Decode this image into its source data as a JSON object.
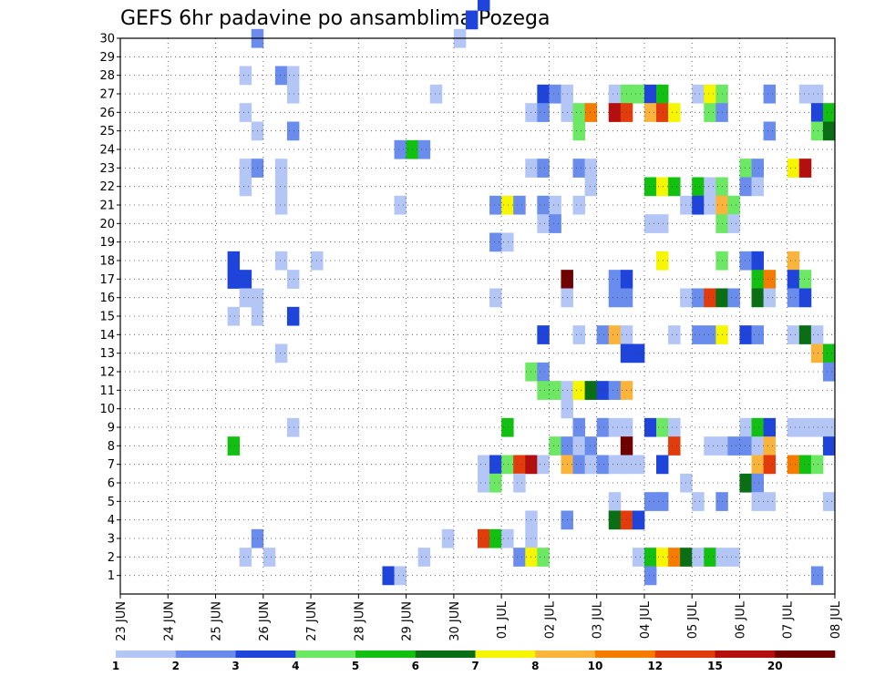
{
  "chart_data": {
    "type": "heatmap",
    "title": "GEFS 6hr padavine po ansamblima Pozega",
    "xlabel": "",
    "ylabel": "",
    "x_ticks": [
      "23 JUN",
      "24 JUN",
      "25 JUN",
      "26 JUN",
      "27 JUN",
      "28 JUN",
      "29 JUN",
      "30 JUN",
      "01 JUL",
      "02 JUL",
      "03 JUL",
      "04 JUL",
      "05 JUL",
      "06 JUL",
      "07 JUL",
      "08 JUL"
    ],
    "x_range": [
      0,
      60
    ],
    "y_range": [
      0,
      30
    ],
    "y_ticks": [
      1,
      2,
      3,
      4,
      5,
      6,
      7,
      8,
      9,
      10,
      11,
      12,
      13,
      14,
      15,
      16,
      17,
      18,
      19,
      20,
      21,
      22,
      23,
      24,
      25,
      26,
      27,
      28,
      29,
      30
    ],
    "grid": true,
    "legend": {
      "placement": "bottom",
      "labels": [
        "1",
        "2",
        "3",
        "4",
        "5",
        "6",
        "7",
        "8",
        "10",
        "12",
        "15",
        "20"
      ],
      "colors": [
        "#b4c6f6",
        "#6a8cec",
        "#1e44dc",
        "#6ce864",
        "#12c012",
        "#0a6e14",
        "#f6f600",
        "#fab43c",
        "#f67c00",
        "#e23c0c",
        "#b40e0e",
        "#6e0000"
      ]
    },
    "cells": [
      [
        12,
        30,
        2
      ],
      [
        29,
        30,
        1
      ],
      [
        30,
        31,
        3
      ],
      [
        31,
        32,
        3
      ],
      [
        34,
        35,
        2
      ],
      [
        46,
        47,
        1
      ],
      [
        47,
        48,
        1
      ],
      [
        11,
        28,
        1
      ],
      [
        14,
        28,
        2
      ],
      [
        15,
        28,
        1
      ],
      [
        15,
        27,
        1
      ],
      [
        27,
        27,
        1
      ],
      [
        36,
        27,
        3
      ],
      [
        37,
        27,
        2
      ],
      [
        38,
        27,
        1
      ],
      [
        42,
        27,
        1
      ],
      [
        43,
        27,
        4
      ],
      [
        44,
        27,
        4
      ],
      [
        45,
        27,
        3
      ],
      [
        46,
        27,
        5
      ],
      [
        49,
        27,
        1
      ],
      [
        50,
        27,
        7
      ],
      [
        51,
        27,
        4
      ],
      [
        55,
        27,
        2
      ],
      [
        58,
        27,
        1
      ],
      [
        59,
        27,
        1
      ],
      [
        11,
        26,
        1
      ],
      [
        35,
        26,
        1
      ],
      [
        36,
        26,
        2
      ],
      [
        38,
        26,
        1
      ],
      [
        39,
        26,
        4
      ],
      [
        40,
        26,
        9
      ],
      [
        42,
        26,
        11
      ],
      [
        43,
        26,
        10
      ],
      [
        45,
        26,
        8
      ],
      [
        46,
        26,
        10
      ],
      [
        47,
        26,
        7
      ],
      [
        50,
        26,
        4
      ],
      [
        51,
        26,
        2
      ],
      [
        59,
        26,
        3
      ],
      [
        60,
        26,
        5
      ],
      [
        12,
        25,
        1
      ],
      [
        15,
        25,
        2
      ],
      [
        39,
        25,
        4
      ],
      [
        55,
        25,
        2
      ],
      [
        59,
        25,
        4
      ],
      [
        60,
        25,
        6
      ],
      [
        24,
        24,
        2
      ],
      [
        25,
        24,
        5
      ],
      [
        26,
        24,
        2
      ],
      [
        11,
        23,
        1
      ],
      [
        12,
        23,
        2
      ],
      [
        14,
        23,
        1
      ],
      [
        35,
        23,
        1
      ],
      [
        36,
        23,
        2
      ],
      [
        39,
        23,
        2
      ],
      [
        40,
        23,
        1
      ],
      [
        53,
        23,
        4
      ],
      [
        54,
        23,
        2
      ],
      [
        57,
        23,
        7
      ],
      [
        58,
        23,
        11
      ],
      [
        11,
        22,
        1
      ],
      [
        14,
        22,
        1
      ],
      [
        40,
        22,
        1
      ],
      [
        45,
        22,
        5
      ],
      [
        46,
        22,
        7
      ],
      [
        47,
        22,
        5
      ],
      [
        49,
        22,
        5
      ],
      [
        50,
        22,
        1
      ],
      [
        51,
        22,
        4
      ],
      [
        53,
        22,
        2
      ],
      [
        54,
        22,
        1
      ],
      [
        14,
        21,
        1
      ],
      [
        24,
        21,
        1
      ],
      [
        32,
        21,
        2
      ],
      [
        33,
        21,
        7
      ],
      [
        34,
        21,
        2
      ],
      [
        36,
        21,
        2
      ],
      [
        37,
        21,
        1
      ],
      [
        39,
        21,
        1
      ],
      [
        48,
        21,
        1
      ],
      [
        49,
        21,
        3
      ],
      [
        50,
        21,
        1
      ],
      [
        51,
        21,
        8
      ],
      [
        52,
        21,
        4
      ],
      [
        36,
        20,
        1
      ],
      [
        37,
        20,
        2
      ],
      [
        45,
        20,
        1
      ],
      [
        46,
        20,
        1
      ],
      [
        51,
        20,
        4
      ],
      [
        52,
        20,
        1
      ],
      [
        32,
        19,
        2
      ],
      [
        33,
        19,
        1
      ],
      [
        10,
        18,
        3
      ],
      [
        14,
        18,
        1
      ],
      [
        17,
        18,
        1
      ],
      [
        46,
        18,
        7
      ],
      [
        51,
        18,
        4
      ],
      [
        53,
        18,
        2
      ],
      [
        54,
        18,
        3
      ],
      [
        57,
        18,
        8
      ],
      [
        10,
        17,
        3
      ],
      [
        11,
        17,
        3
      ],
      [
        15,
        17,
        1
      ],
      [
        38,
        17,
        12
      ],
      [
        42,
        17,
        2
      ],
      [
        43,
        17,
        3
      ],
      [
        54,
        17,
        5
      ],
      [
        55,
        17,
        9
      ],
      [
        57,
        17,
        3
      ],
      [
        58,
        17,
        4
      ],
      [
        11,
        16,
        1
      ],
      [
        12,
        16,
        1
      ],
      [
        32,
        16,
        1
      ],
      [
        38,
        16,
        1
      ],
      [
        42,
        16,
        2
      ],
      [
        43,
        16,
        2
      ],
      [
        48,
        16,
        1
      ],
      [
        49,
        16,
        2
      ],
      [
        50,
        16,
        10
      ],
      [
        51,
        16,
        6
      ],
      [
        52,
        16,
        2
      ],
      [
        54,
        16,
        6
      ],
      [
        55,
        16,
        1
      ],
      [
        57,
        16,
        2
      ],
      [
        58,
        16,
        3
      ],
      [
        10,
        15,
        1
      ],
      [
        12,
        15,
        1
      ],
      [
        15,
        15,
        3
      ],
      [
        36,
        14,
        3
      ],
      [
        39,
        14,
        1
      ],
      [
        41,
        14,
        2
      ],
      [
        42,
        14,
        8
      ],
      [
        43,
        14,
        1
      ],
      [
        47,
        14,
        1
      ],
      [
        49,
        14,
        2
      ],
      [
        50,
        14,
        2
      ],
      [
        51,
        14,
        7
      ],
      [
        53,
        14,
        3
      ],
      [
        54,
        14,
        2
      ],
      [
        57,
        14,
        1
      ],
      [
        58,
        14,
        6
      ],
      [
        59,
        14,
        1
      ],
      [
        14,
        13,
        1
      ],
      [
        43,
        13,
        3
      ],
      [
        44,
        13,
        3
      ],
      [
        59,
        13,
        8
      ],
      [
        60,
        13,
        5
      ],
      [
        35,
        12,
        4
      ],
      [
        36,
        12,
        2
      ],
      [
        60,
        12,
        2
      ],
      [
        36,
        11,
        4
      ],
      [
        37,
        11,
        4
      ],
      [
        38,
        11,
        1
      ],
      [
        39,
        11,
        7
      ],
      [
        40,
        11,
        6
      ],
      [
        41,
        11,
        3
      ],
      [
        42,
        11,
        2
      ],
      [
        43,
        11,
        8
      ],
      [
        38,
        10,
        1
      ],
      [
        15,
        9,
        1
      ],
      [
        33,
        9,
        5
      ],
      [
        39,
        9,
        2
      ],
      [
        41,
        9,
        2
      ],
      [
        42,
        9,
        1
      ],
      [
        43,
        9,
        1
      ],
      [
        45,
        9,
        3
      ],
      [
        46,
        9,
        4
      ],
      [
        47,
        9,
        1
      ],
      [
        53,
        9,
        1
      ],
      [
        54,
        9,
        5
      ],
      [
        55,
        9,
        3
      ],
      [
        57,
        9,
        1
      ],
      [
        58,
        9,
        1
      ],
      [
        59,
        9,
        1
      ],
      [
        60,
        9,
        1
      ],
      [
        10,
        8,
        5
      ],
      [
        37,
        8,
        4
      ],
      [
        38,
        8,
        2
      ],
      [
        39,
        8,
        1
      ],
      [
        40,
        8,
        2
      ],
      [
        43,
        8,
        12
      ],
      [
        47,
        8,
        10
      ],
      [
        50,
        8,
        1
      ],
      [
        51,
        8,
        1
      ],
      [
        52,
        8,
        2
      ],
      [
        53,
        8,
        2
      ],
      [
        54,
        8,
        1
      ],
      [
        55,
        8,
        8
      ],
      [
        60,
        8,
        3
      ],
      [
        31,
        7,
        1
      ],
      [
        32,
        7,
        3
      ],
      [
        33,
        7,
        4
      ],
      [
        34,
        7,
        10
      ],
      [
        35,
        7,
        11
      ],
      [
        36,
        7,
        1
      ],
      [
        38,
        7,
        8
      ],
      [
        39,
        7,
        2
      ],
      [
        40,
        7,
        1
      ],
      [
        41,
        7,
        2
      ],
      [
        42,
        7,
        1
      ],
      [
        43,
        7,
        1
      ],
      [
        44,
        7,
        1
      ],
      [
        46,
        7,
        3
      ],
      [
        54,
        7,
        8
      ],
      [
        55,
        7,
        10
      ],
      [
        57,
        7,
        9
      ],
      [
        58,
        7,
        5
      ],
      [
        59,
        7,
        4
      ],
      [
        31,
        6,
        1
      ],
      [
        32,
        6,
        4
      ],
      [
        34,
        6,
        1
      ],
      [
        48,
        6,
        1
      ],
      [
        53,
        6,
        6
      ],
      [
        54,
        6,
        2
      ],
      [
        42,
        5,
        1
      ],
      [
        45,
        5,
        2
      ],
      [
        46,
        5,
        2
      ],
      [
        49,
        5,
        1
      ],
      [
        51,
        5,
        2
      ],
      [
        54,
        5,
        1
      ],
      [
        55,
        5,
        1
      ],
      [
        60,
        5,
        1
      ],
      [
        35,
        4,
        1
      ],
      [
        38,
        4,
        2
      ],
      [
        42,
        4,
        6
      ],
      [
        43,
        4,
        10
      ],
      [
        44,
        4,
        3
      ],
      [
        12,
        3,
        2
      ],
      [
        28,
        3,
        1
      ],
      [
        31,
        3,
        10
      ],
      [
        32,
        3,
        5
      ],
      [
        33,
        3,
        1
      ],
      [
        35,
        3,
        1
      ],
      [
        11,
        2,
        1
      ],
      [
        13,
        2,
        1
      ],
      [
        26,
        2,
        1
      ],
      [
        34,
        2,
        2
      ],
      [
        35,
        2,
        7
      ],
      [
        36,
        2,
        4
      ],
      [
        44,
        2,
        1
      ],
      [
        45,
        2,
        5
      ],
      [
        46,
        2,
        7
      ],
      [
        47,
        2,
        9
      ],
      [
        48,
        2,
        6
      ],
      [
        49,
        2,
        1
      ],
      [
        50,
        2,
        5
      ],
      [
        51,
        2,
        1
      ],
      [
        52,
        2,
        1
      ],
      [
        23,
        1,
        3
      ],
      [
        24,
        1,
        1
      ],
      [
        45,
        1,
        2
      ],
      [
        59,
        1,
        2
      ]
    ]
  }
}
